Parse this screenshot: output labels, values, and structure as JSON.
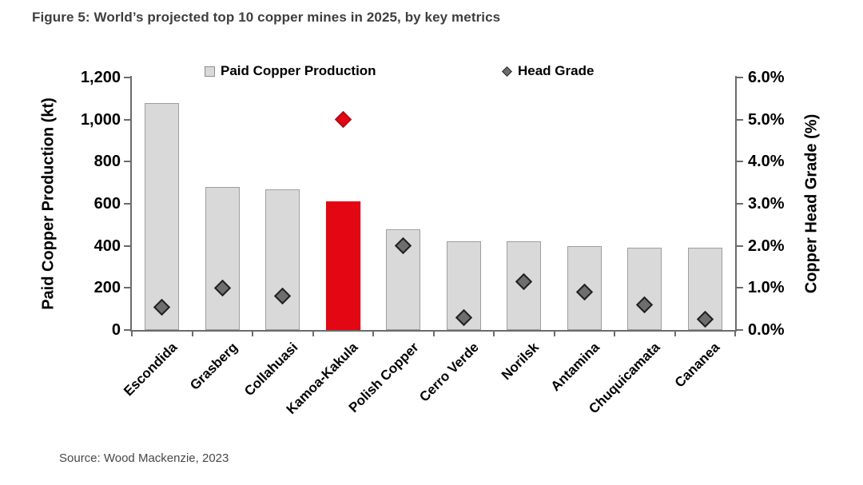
{
  "figure": {
    "title": "Figure 5: World’s projected top 10 copper mines in 2025, by key metrics",
    "source": "Source: Wood Mackenzie, 2023"
  },
  "chart_data": {
    "type": "bar",
    "title": "Figure 5: World’s projected top 10 copper mines in 2025, by key metrics",
    "categories": [
      "Escondida",
      "Grasberg",
      "Collahuasi",
      "Kamoa-Kakula",
      "Polish Copper",
      "Cerro Verde",
      "Norilsk",
      "Antamina",
      "Chuquicamata",
      "Cananea"
    ],
    "series": [
      {
        "name": "Paid Copper Production",
        "type": "bar",
        "axis": "left",
        "unit": "kt",
        "values": [
          1080,
          680,
          670,
          610,
          480,
          420,
          420,
          400,
          390,
          390
        ]
      },
      {
        "name": "Head Grade",
        "type": "scatter",
        "marker": "diamond",
        "axis": "right",
        "unit": "%",
        "values": [
          0.55,
          1.0,
          0.8,
          5.0,
          2.0,
          0.3,
          1.15,
          0.9,
          0.6,
          0.25
        ]
      }
    ],
    "highlight": {
      "category": "Kamoa-Kakula",
      "color": "#e30613"
    },
    "left_axis": {
      "title": "Paid Copper Production (kt)",
      "min": 0,
      "max": 1200,
      "ticks": [
        "0",
        "200",
        "400",
        "600",
        "800",
        "1,000",
        "1,200"
      ]
    },
    "right_axis": {
      "title": "Copper Head Grade (%)",
      "min": 0,
      "max": 6,
      "ticks": [
        "0.0%",
        "1.0%",
        "2.0%",
        "3.0%",
        "4.0%",
        "5.0%",
        "6.0%"
      ]
    },
    "legend": {
      "position": "top-center",
      "items": [
        {
          "label": "Paid Copper Production",
          "swatch": "square",
          "color": "#d9d9d9"
        },
        {
          "label": "Head Grade",
          "swatch": "diamond",
          "color": "#6e6e6e"
        }
      ]
    },
    "grid": false,
    "colors": {
      "bar_fill": "#d9d9d9",
      "bar_border": "#9e9e9e",
      "marker_fill": "#6e6e6e",
      "marker_border": "#212121",
      "highlight_red": "#e30613",
      "highlight_marker_border": "#c10511",
      "axis_line": "#6b6b6b",
      "tick_text": "#000000",
      "title_text": "#3e3e3e",
      "source_text": "#474747"
    }
  }
}
